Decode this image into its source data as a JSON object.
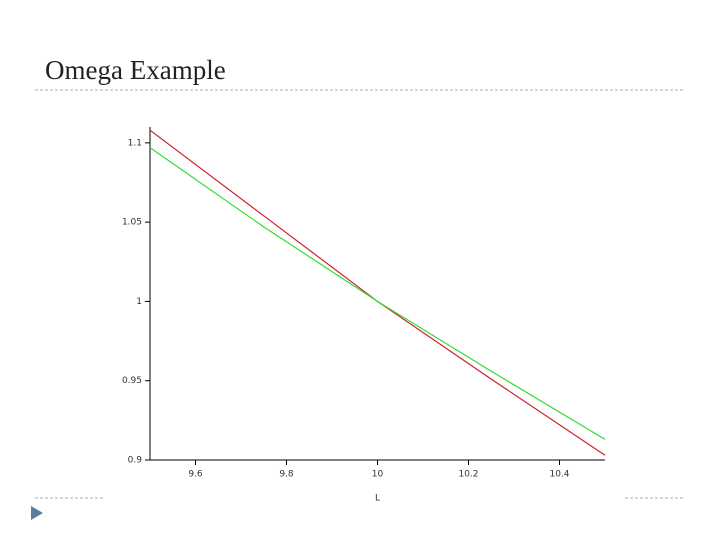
{
  "slide": {
    "title": "Omega Example"
  },
  "chart_data": {
    "type": "line",
    "x_label": "L",
    "x": [
      9.5,
      9.75,
      10,
      10.25,
      10.5
    ],
    "series": [
      {
        "color": "#cc1f2b",
        "values": [
          1.108,
          1.054,
          1.0,
          0.951,
          0.903
        ]
      },
      {
        "color": "#33dd33",
        "values": [
          1.097,
          1.047,
          1.0,
          0.956,
          0.913
        ]
      }
    ],
    "xlim": [
      9.5,
      10.5
    ],
    "xticks": [
      9.6,
      9.8,
      10,
      10.2,
      10.4
    ],
    "ylim": [
      0.9,
      1.11
    ],
    "yticks": [
      0.9,
      0.95,
      1,
      1.05,
      1.1
    ]
  }
}
